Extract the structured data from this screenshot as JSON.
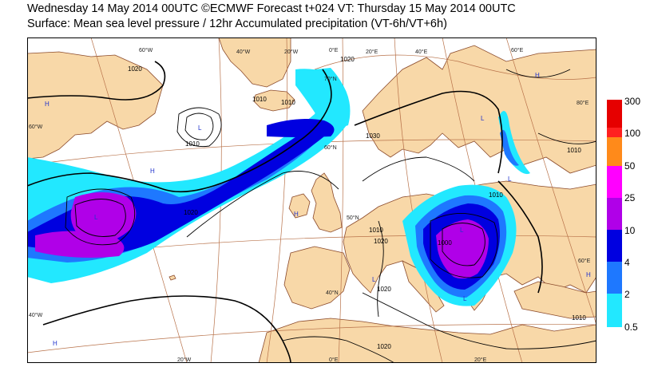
{
  "header": {
    "line1": "Wednesday 14 May 2014 00UTC ©ECMWF Forecast t+024 VT: Thursday 15 May 2014 00UTC",
    "line2": "Surface: Mean sea level pressure / 12hr Accumulated precipitation (VT-6h/VT+6h)"
  },
  "colors": {
    "land": "#f8d8a8",
    "sea": "#ffffff",
    "coast": "#8b4a2b",
    "grid": "#b8724a",
    "isobar": "#000000"
  },
  "legend": {
    "levels": [
      {
        "label": "300",
        "color": "#e60000"
      },
      {
        "label": "100",
        "color": "#ff2020"
      },
      {
        "label": "50",
        "color": "#ff8a1a"
      },
      {
        "label": "25",
        "color": "#ff00ff"
      },
      {
        "label": "10",
        "color": "#b000e8"
      },
      {
        "label": "4",
        "color": "#0000e0"
      },
      {
        "label": "2",
        "color": "#1e78ff"
      },
      {
        "label": "0.5",
        "color": "#22e8ff"
      }
    ],
    "bottom_label": "0.5"
  },
  "grid_labels": {
    "top": [
      "60°W",
      "40°W",
      "20°W",
      "0°E",
      "20°E",
      "40°E",
      "60°E"
    ],
    "bottom": [
      "20°W",
      "0°E",
      "20°E"
    ],
    "left": [
      "60°W",
      "40°W"
    ],
    "right": [
      "80°E",
      "60°E"
    ],
    "inner": [
      "70°N",
      "60°N",
      "50°N",
      "40°N"
    ]
  },
  "isobar_labels": [
    "1020",
    "1010",
    "1010",
    "1010",
    "1020",
    "1030",
    "1020",
    "1010",
    "1000",
    "1020",
    "1010",
    "1010",
    "1020",
    "1020",
    "1010"
  ],
  "pressure_centres": [
    "H",
    "L",
    "L",
    "H",
    "H",
    "H",
    "L",
    "L",
    "L",
    "L",
    "L",
    "H",
    "H"
  ]
}
